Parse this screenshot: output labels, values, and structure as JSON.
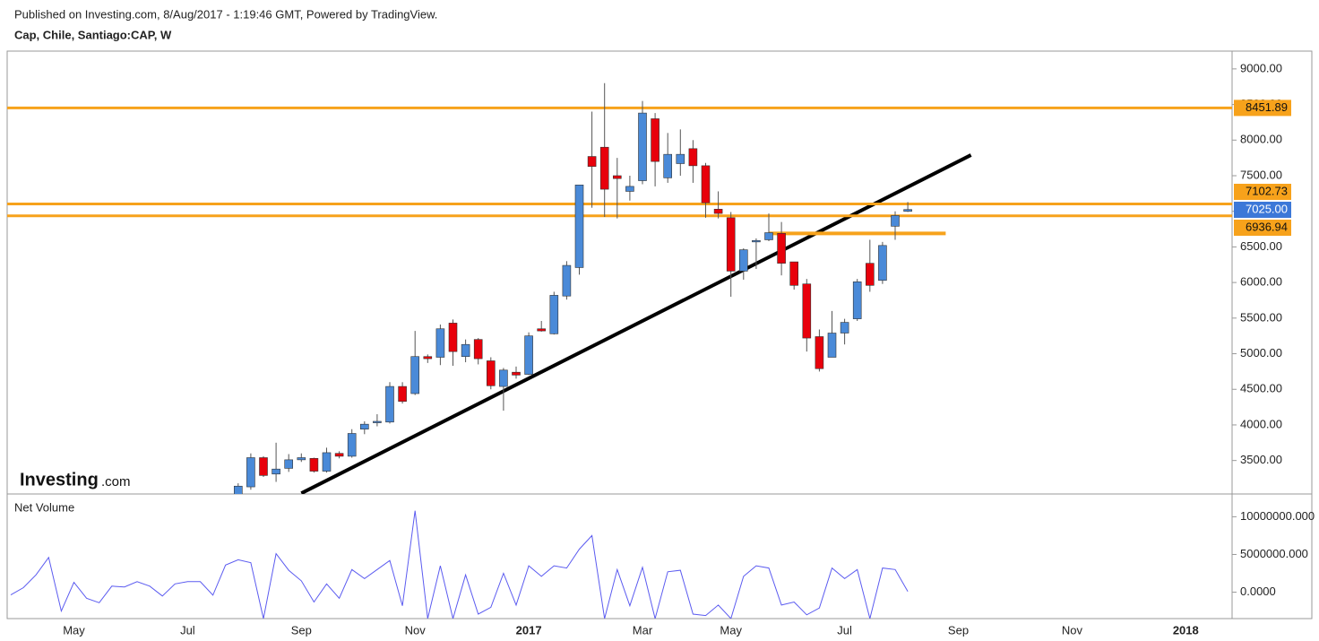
{
  "header": {
    "published": "Published on Investing.com, 8/Aug/2017 - 1:19:46 GMT, Powered by TradingView.",
    "symbol": "Cap, Chile, Santiago:CAP, W"
  },
  "logo": {
    "brand": "Investing",
    "suffix": ".com"
  },
  "chart_data": [
    {
      "type": "candlestick",
      "categories": [
        null,
        null,
        null,
        null,
        null,
        "May",
        null,
        null,
        null,
        null,
        null,
        null,
        null,
        null,
        "Jul",
        null,
        null,
        null,
        null,
        null,
        null,
        null,
        null,
        "Sep",
        null,
        null,
        null,
        null,
        null,
        null,
        null,
        null,
        "Nov",
        null,
        null,
        null,
        null,
        null,
        null,
        null,
        null,
        "2017",
        null,
        null,
        null,
        null,
        null,
        null,
        null,
        null,
        "Mar",
        null,
        null,
        null,
        null,
        null,
        null,
        "May",
        null,
        null,
        null,
        null,
        null,
        null,
        null,
        null,
        "Jul",
        null,
        null,
        null,
        null,
        null,
        null,
        null,
        null,
        "Sep",
        null,
        null,
        null,
        null,
        null,
        null,
        null,
        null,
        "Nov",
        null,
        null,
        null,
        null,
        null,
        null,
        null,
        null,
        "2018",
        null,
        null,
        null
      ],
      "open": [
        null,
        null,
        null,
        null,
        null,
        null,
        null,
        null,
        null,
        null,
        null,
        null,
        null,
        null,
        null,
        null,
        null,
        null,
        3000,
        3130,
        3540,
        3310,
        3390,
        3510,
        3530,
        3350,
        3600,
        3560,
        3940,
        4030,
        4040,
        4540,
        4440,
        4960,
        4950,
        5430,
        4960,
        5200,
        4900,
        4540,
        4740,
        4710,
        5350,
        5280,
        5810,
        6210,
        7770,
        7900,
        7500,
        7280,
        7430,
        8300,
        7470,
        7670,
        7880,
        7640,
        7030,
        6910,
        6160,
        6570,
        6600,
        6690,
        6290,
        5980,
        5240,
        4950,
        5290,
        5490,
        6270,
        6030,
        6790,
        7000,
        null,
        null,
        null,
        null,
        null,
        null,
        null,
        null,
        null,
        null,
        null,
        null,
        null,
        null,
        null,
        null,
        null,
        null,
        null,
        null,
        null,
        null,
        null,
        null,
        null
      ],
      "high": [
        null,
        null,
        null,
        null,
        null,
        null,
        null,
        null,
        null,
        null,
        null,
        null,
        null,
        null,
        null,
        null,
        null,
        null,
        3180,
        3600,
        3560,
        3750,
        3590,
        3600,
        3540,
        3680,
        3630,
        3940,
        4050,
        4150,
        4600,
        4600,
        5320,
        4990,
        5410,
        5480,
        5200,
        5220,
        4950,
        4800,
        4820,
        5300,
        5460,
        5870,
        6300,
        7370,
        8400,
        8800,
        7750,
        7500,
        8550,
        8380,
        8100,
        8150,
        8000,
        7680,
        7280,
        6990,
        6480,
        6620,
        6970,
        6850,
        6290,
        6050,
        5340,
        5600,
        5490,
        6050,
        6600,
        6570,
        7000,
        7130,
        null,
        null,
        null,
        null,
        null,
        null,
        null,
        null,
        null,
        null,
        null,
        null,
        null,
        null,
        null,
        null,
        null,
        null,
        null,
        null,
        null,
        null,
        null,
        null,
        null
      ],
      "low": [
        null,
        null,
        null,
        null,
        null,
        null,
        null,
        null,
        null,
        null,
        null,
        null,
        null,
        null,
        null,
        null,
        null,
        null,
        2950,
        3090,
        3270,
        3200,
        3340,
        3480,
        3330,
        3330,
        3530,
        3540,
        3870,
        3980,
        4020,
        4300,
        4420,
        4870,
        4840,
        4830,
        4880,
        4850,
        4500,
        4200,
        4650,
        4700,
        5310,
        5270,
        5760,
        6110,
        7050,
        6920,
        6900,
        7150,
        7380,
        7350,
        7400,
        7500,
        7400,
        6910,
        6900,
        5800,
        6040,
        6190,
        6580,
        6100,
        5900,
        5030,
        4750,
        4950,
        5130,
        5460,
        5870,
        5980,
        6600,
        6990,
        null,
        null,
        null,
        null,
        null,
        null,
        null,
        null,
        null,
        null,
        null,
        null,
        null,
        null,
        null,
        null,
        null,
        null,
        null,
        null,
        null,
        null,
        null,
        null,
        null
      ],
      "close": [
        null,
        null,
        null,
        null,
        null,
        null,
        null,
        null,
        null,
        null,
        null,
        null,
        null,
        null,
        null,
        null,
        null,
        null,
        3140,
        3540,
        3290,
        3380,
        3510,
        3540,
        3350,
        3610,
        3560,
        3880,
        4010,
        4050,
        4540,
        4330,
        4960,
        4930,
        5350,
        5030,
        5130,
        4930,
        4550,
        4770,
        4700,
        5250,
        5320,
        5820,
        6240,
        7370,
        7630,
        7310,
        7460,
        7350,
        8380,
        7700,
        7800,
        7800,
        7640,
        7120,
        6970,
        6160,
        6460,
        6590,
        6700,
        6270,
        5960,
        5220,
        4790,
        5290,
        5440,
        6010,
        5960,
        6520,
        6940,
        7025,
        null,
        null,
        null,
        null,
        null,
        null,
        null,
        null,
        null,
        null,
        null,
        null,
        null,
        null,
        null,
        null,
        null,
        null,
        null,
        null,
        null,
        null,
        null,
        null,
        null
      ],
      "up_color": "#4a8ad8",
      "down_color": "#e8000b",
      "ylim": [
        3030,
        9250
      ],
      "yticks": [
        {
          "value": 3500,
          "label": "3500.00"
        },
        {
          "value": 4000,
          "label": "4000.00"
        },
        {
          "value": 4500,
          "label": "4500.00"
        },
        {
          "value": 5000,
          "label": "5000.00"
        },
        {
          "value": 5500,
          "label": "5500.00"
        },
        {
          "value": 6000,
          "label": "6000.00"
        },
        {
          "value": 6500,
          "label": "6500.00"
        },
        {
          "value": 7000,
          "label": "7000.00"
        },
        {
          "value": 7500,
          "label": "7500.00"
        },
        {
          "value": 8000,
          "label": "8000.00"
        },
        {
          "value": 8500,
          "label": "8500.00"
        },
        {
          "value": 9000,
          "label": "9000.00"
        }
      ],
      "levels": [
        {
          "value": 8451.89,
          "color": "#f7a21b"
        },
        {
          "value": 7102.73,
          "color": "#f7a21b"
        },
        {
          "value": 6936.94,
          "color": "#f7a21b"
        }
      ],
      "last_price": {
        "value": 7025,
        "label": "7025.00",
        "color": "#3c78d8"
      },
      "lines": [
        {
          "color": "#000000",
          "x": [
            23,
            76
          ],
          "y": [
            3040,
            7790
          ]
        },
        {
          "color": "#f7a21b",
          "x": [
            60,
            74
          ],
          "y": [
            6690,
            6690
          ]
        }
      ]
    },
    {
      "type": "line",
      "title": "Net Volume",
      "color": "#5b5bf0",
      "values": [
        -360000,
        600000,
        2300000,
        4600000,
        -2500000,
        1300000,
        -800000,
        -1400000,
        800000,
        700000,
        1400000,
        800000,
        -500000,
        1100000,
        1400000,
        1400000,
        -400000,
        3600000,
        4300000,
        3900000,
        -3500000,
        5100000,
        2900000,
        1500000,
        -1300000,
        1100000,
        -800000,
        3000000,
        1800000,
        3000000,
        4200000,
        -1800000,
        10800000,
        -3500000,
        3500000,
        -3500000,
        2300000,
        -2900000,
        -2000000,
        2500000,
        -1700000,
        3500000,
        2100000,
        3500000,
        3200000,
        5700000,
        7500000,
        -3500000,
        3000000,
        -1800000,
        3300000,
        -3500000,
        2700000,
        2900000,
        -2900000,
        -3100000,
        -1700000,
        -3500000,
        2100000,
        3500000,
        3200000,
        -1700000,
        -1300000,
        -3000000,
        -2100000,
        3200000,
        1800000,
        3000000,
        -3500000,
        3200000,
        3000000,
        100000,
        null,
        null,
        null,
        null,
        null,
        null,
        null,
        null,
        null,
        null,
        null,
        null,
        null,
        null,
        null,
        null,
        null,
        null,
        null,
        null,
        null,
        null,
        null,
        null,
        null
      ],
      "ylim": [
        -3500000,
        12900000
      ],
      "yticks": [
        {
          "value": 0,
          "label": "0.0000"
        },
        {
          "value": 5000000,
          "label": "5000000.000"
        },
        {
          "value": 10000000,
          "label": "10000000.000"
        }
      ]
    }
  ]
}
